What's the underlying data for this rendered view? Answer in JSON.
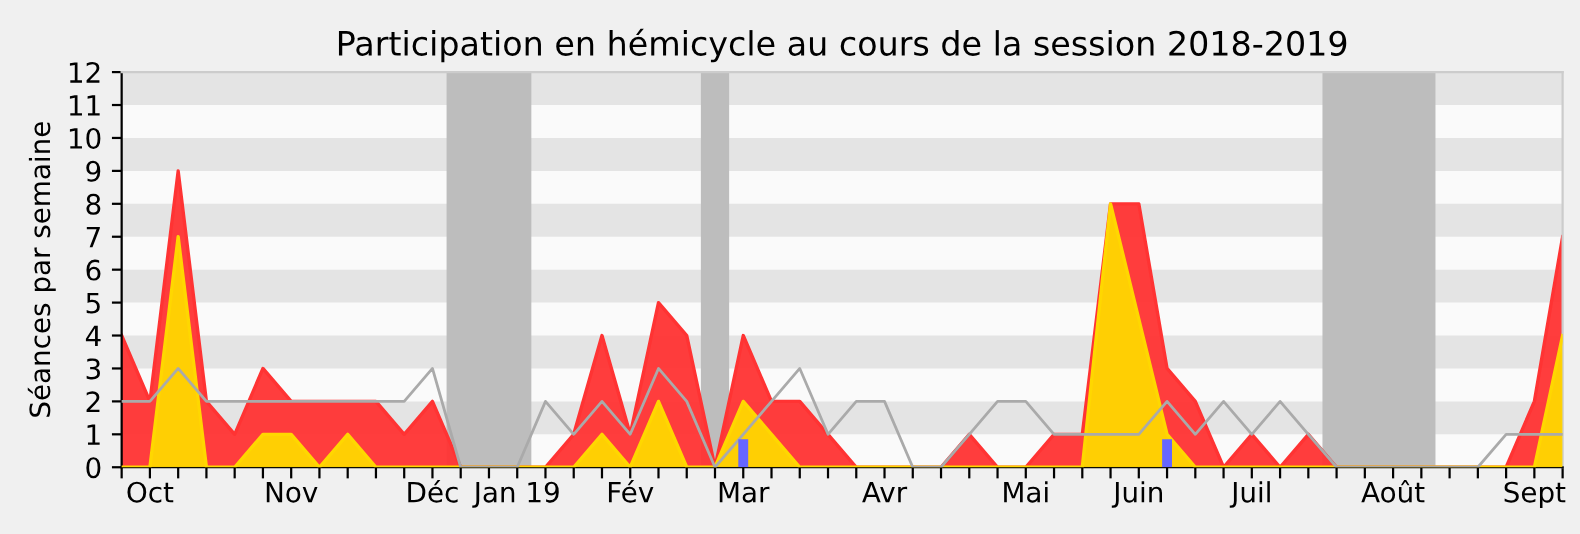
{
  "chart_data": {
    "type": "area",
    "title": "Participation en hémicycle au cours de la session 2018-2019",
    "ylabel": "Séances par semaine",
    "categories": [
      null,
      "Oct",
      null,
      null,
      null,
      null,
      "Nov",
      null,
      null,
      null,
      null,
      "Déc",
      null,
      null,
      "Jan 19",
      null,
      null,
      null,
      "Fév",
      null,
      null,
      null,
      "Mar",
      null,
      null,
      null,
      null,
      "Avr",
      null,
      null,
      null,
      null,
      "Mai",
      null,
      null,
      null,
      "Juin",
      null,
      null,
      null,
      "Juil",
      null,
      null,
      null,
      null,
      "Août",
      null,
      null,
      null,
      null,
      "Sept",
      null
    ],
    "series": [
      {
        "color": "#ff3333",
        "values": [
          4,
          2,
          9,
          2,
          1,
          3,
          2,
          2,
          2,
          2,
          1,
          2,
          0,
          0,
          0,
          0,
          1,
          4,
          1,
          5,
          4,
          0,
          4,
          2,
          2,
          1,
          0,
          0,
          0,
          0,
          1,
          0,
          0,
          1,
          1,
          8,
          8,
          3,
          2,
          0,
          1,
          0,
          1,
          0,
          0,
          0,
          0,
          0,
          0,
          0,
          2,
          7
        ]
      },
      {
        "color": "#ffd700",
        "values": [
          0,
          0,
          7,
          0,
          0,
          1,
          1,
          0,
          1,
          0,
          0,
          0,
          0,
          0,
          0,
          0,
          0,
          1,
          0,
          2,
          0,
          0,
          2,
          1,
          0,
          0,
          0,
          0,
          0,
          0,
          0,
          0,
          0,
          0,
          0,
          8,
          4.5,
          1,
          0,
          0,
          0,
          0,
          0,
          0,
          0,
          0,
          0,
          0,
          0,
          0,
          0,
          4
        ]
      },
      {
        "type": "line",
        "color": "#aaaaaa",
        "values": [
          2,
          2,
          3,
          2,
          2,
          2,
          2,
          2,
          2,
          2,
          2,
          3,
          0,
          0,
          0,
          2,
          1,
          2,
          1,
          3,
          2,
          0,
          1,
          2,
          3,
          1,
          2,
          2,
          0,
          0,
          1,
          2,
          2,
          1,
          1,
          1,
          1,
          2,
          1,
          2,
          1,
          2,
          1,
          0,
          0,
          0,
          0,
          0,
          0,
          1,
          1,
          1
        ]
      },
      {
        "type": "bar",
        "color": "#6666ff",
        "values": [
          0,
          0,
          0,
          0,
          0,
          0,
          0,
          0,
          0,
          0,
          0,
          0,
          0,
          0,
          0,
          0,
          0,
          0,
          0,
          0,
          0,
          0,
          0.85,
          0,
          0,
          0,
          0,
          0,
          0,
          0,
          0,
          0,
          0,
          0,
          0,
          0,
          0,
          0.85,
          0,
          0,
          0,
          0,
          0,
          0,
          0,
          0,
          0,
          0,
          0,
          0,
          0,
          0
        ]
      }
    ],
    "ylim": [
      0,
      12
    ],
    "yticks": [
      0,
      1,
      2,
      3,
      4,
      5,
      6,
      7,
      8,
      9,
      10,
      11,
      12
    ]
  }
}
